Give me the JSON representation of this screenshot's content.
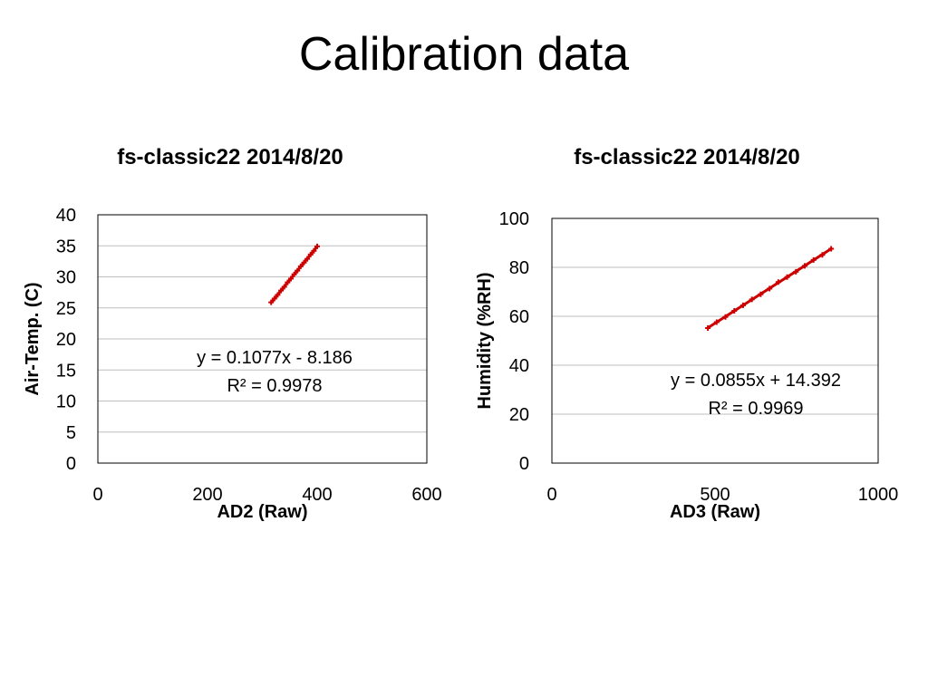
{
  "slide": {
    "title": "Calibration data"
  },
  "colors": {
    "series": "#cc0000",
    "gridline": "#bfbfbf",
    "frame": "#000000",
    "text": "#000000"
  },
  "chart_data": [
    {
      "type": "scatter",
      "title": "fs-classic22 2014/8/20",
      "xlabel": "AD2 (Raw)",
      "ylabel": "Air-Temp. (C)",
      "xlim": [
        0,
        600
      ],
      "ylim": [
        0,
        40
      ],
      "xticks": [
        0,
        200,
        400,
        600
      ],
      "yticks": [
        0,
        5,
        10,
        15,
        20,
        25,
        30,
        35,
        40
      ],
      "grid": true,
      "series": [
        {
          "x": [
            316,
            322,
            328,
            334,
            340,
            346,
            352,
            358,
            364,
            370,
            376,
            382,
            388,
            394,
            400
          ],
          "y": [
            25.9,
            26.5,
            27.1,
            27.8,
            28.4,
            29.1,
            29.7,
            30.4,
            31.0,
            31.7,
            32.3,
            32.9,
            33.6,
            34.2,
            34.9
          ]
        }
      ],
      "trendline": {
        "slope": 0.1077,
        "intercept": -8.186
      },
      "annotations": [
        "y = 0.1077x - 8.186",
        "R² = 0.9978"
      ]
    },
    {
      "type": "scatter",
      "title": "fs-classic22 2014/8/20",
      "xlabel": "AD3 (Raw)",
      "ylabel": "Humidity (%RH)",
      "xlim": [
        0,
        1000
      ],
      "ylim": [
        0,
        100
      ],
      "xticks": [
        0,
        500,
        1000
      ],
      "yticks": [
        0,
        20,
        40,
        60,
        80,
        100
      ],
      "grid": true,
      "series": [
        {
          "x": [
            478,
            505,
            532,
            559,
            586,
            613,
            640,
            667,
            694,
            721,
            748,
            775,
            802,
            829,
            856
          ],
          "y": [
            55.2,
            57.6,
            59.7,
            62.2,
            64.5,
            66.9,
            69.0,
            71.3,
            74.0,
            76.0,
            78.2,
            80.6,
            83.0,
            85.1,
            87.6
          ]
        }
      ],
      "trendline": {
        "slope": 0.0855,
        "intercept": 14.392
      },
      "annotations": [
        "y = 0.0855x + 14.392",
        "R² = 0.9969"
      ]
    }
  ]
}
